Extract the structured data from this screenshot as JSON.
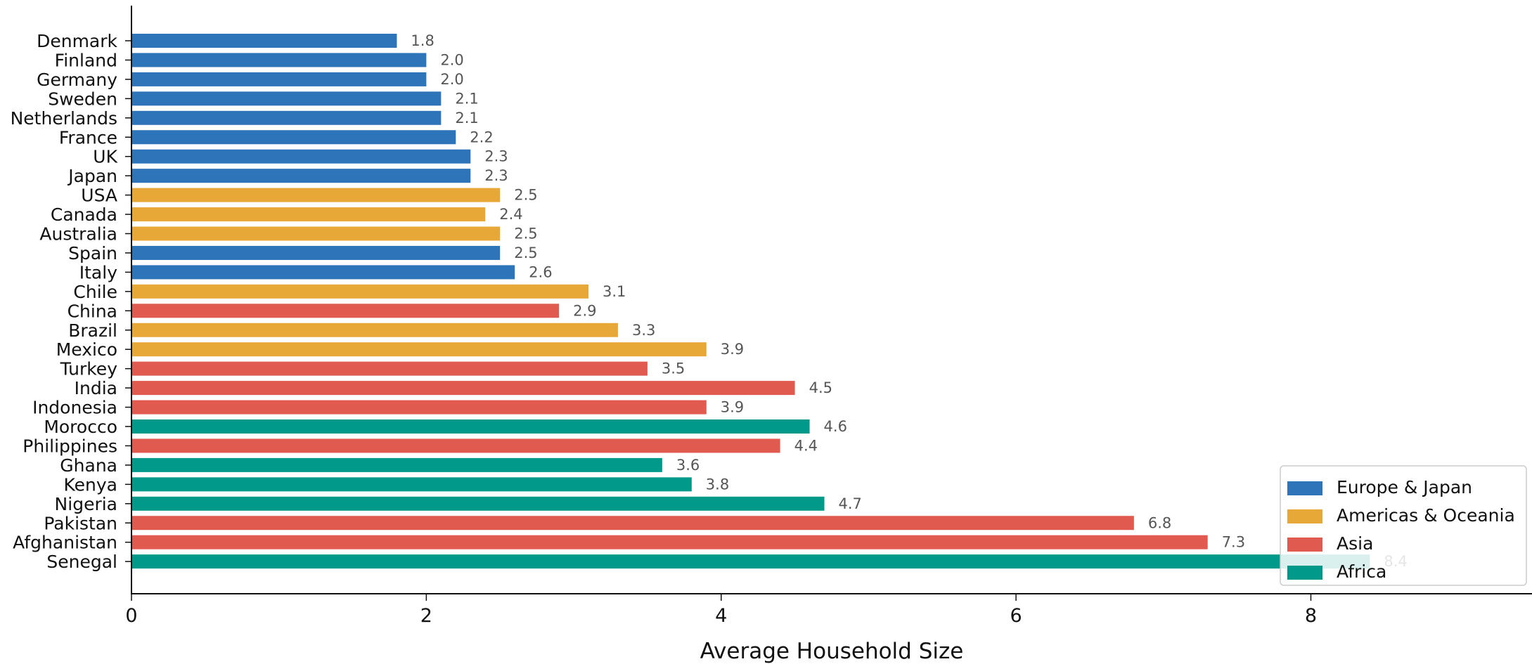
{
  "chart_data": {
    "type": "bar",
    "orientation": "horizontal",
    "xlabel": "Average Household Size",
    "xlim": [
      0,
      9.5
    ],
    "xticks": [
      0,
      2,
      4,
      6,
      8
    ],
    "grid": false,
    "legend_position": "bottom-right",
    "categories": [
      "Denmark",
      "Finland",
      "Germany",
      "Sweden",
      "Netherlands",
      "France",
      "UK",
      "Japan",
      "USA",
      "Canada",
      "Australia",
      "Spain",
      "Italy",
      "Chile",
      "China",
      "Brazil",
      "Mexico",
      "Turkey",
      "India",
      "Indonesia",
      "Morocco",
      "Philippines",
      "Ghana",
      "Kenya",
      "Nigeria",
      "Pakistan",
      "Afghanistan",
      "Senegal"
    ],
    "values": [
      1.8,
      2.0,
      2.0,
      2.1,
      2.1,
      2.2,
      2.3,
      2.3,
      2.5,
      2.4,
      2.5,
      2.5,
      2.6,
      3.1,
      2.9,
      3.3,
      3.9,
      3.5,
      4.5,
      3.9,
      4.6,
      4.4,
      3.6,
      3.8,
      4.7,
      6.8,
      7.3,
      8.4
    ],
    "groups": [
      "Europe & Japan",
      "Europe & Japan",
      "Europe & Japan",
      "Europe & Japan",
      "Europe & Japan",
      "Europe & Japan",
      "Europe & Japan",
      "Europe & Japan",
      "Americas & Oceania",
      "Americas & Oceania",
      "Americas & Oceania",
      "Europe & Japan",
      "Europe & Japan",
      "Americas & Oceania",
      "Asia",
      "Americas & Oceania",
      "Americas & Oceania",
      "Asia",
      "Asia",
      "Asia",
      "Africa",
      "Asia",
      "Africa",
      "Africa",
      "Africa",
      "Asia",
      "Asia",
      "Africa"
    ],
    "value_labels": [
      "1.8",
      "2.0",
      "2.0",
      "2.1",
      "2.1",
      "2.2",
      "2.3",
      "2.3",
      "2.5",
      "2.4",
      "2.5",
      "2.5",
      "2.6",
      "3.1",
      "2.9",
      "3.3",
      "3.9",
      "3.5",
      "4.5",
      "3.9",
      "4.6",
      "4.4",
      "3.6",
      "3.8",
      "4.7",
      "6.8",
      "7.3",
      "8.4"
    ],
    "legend": [
      {
        "name": "Europe & Japan",
        "color": "#2e74b8"
      },
      {
        "name": "Americas & Oceania",
        "color": "#e8a838"
      },
      {
        "name": "Asia",
        "color": "#e05a50"
      },
      {
        "name": "Africa",
        "color": "#00998a"
      }
    ]
  }
}
